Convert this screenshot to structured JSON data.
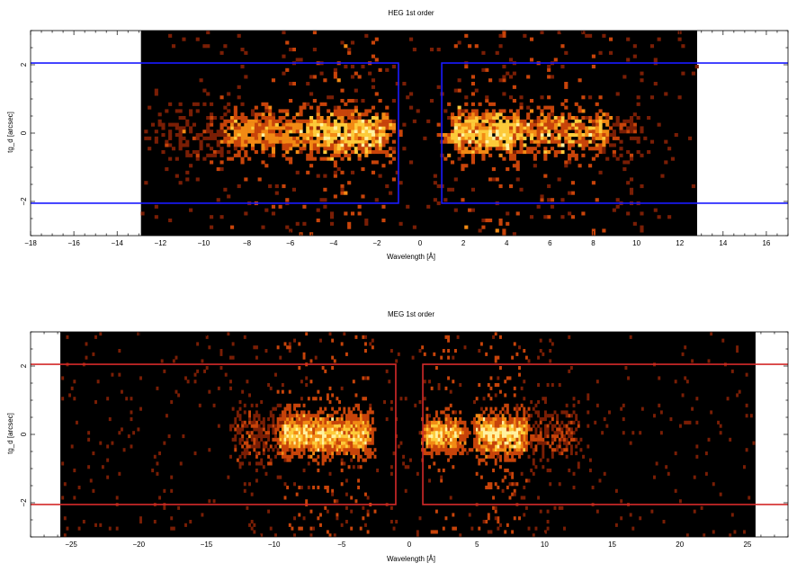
{
  "chart_data": [
    {
      "type": "heatmap",
      "title": "HEG 1st order",
      "xlabel": "Wavelength [Å]",
      "ylabel": "tg_d [arcsec]",
      "xlim": [
        -18,
        17
      ],
      "ylim": [
        -3,
        3
      ],
      "xticks_major": [
        -18,
        -16,
        -14,
        -12,
        -10,
        -8,
        -6,
        -4,
        -2,
        0,
        2,
        4,
        6,
        8,
        10,
        12,
        14,
        16
      ],
      "xtick_labels": [
        "−18",
        "−16",
        "−14",
        "−12",
        "−10",
        "−8",
        "−6",
        "−4",
        "−2",
        "0",
        "2",
        "4",
        "6",
        "8",
        "10",
        "12",
        "14",
        "16"
      ],
      "yticks_major": [
        -2,
        0,
        2
      ],
      "ytick_labels": [
        "−2",
        "0",
        "2"
      ],
      "data_region_x": [
        -12.9,
        12.8
      ],
      "background_color": "#000000",
      "colormap": [
        "#000000",
        "#7a1e05",
        "#c8440a",
        "#f28a14",
        "#fdcb3a",
        "#fff2a0"
      ],
      "grid": false,
      "clusters": [
        {
          "x_center": -3.2,
          "x_halfwidth": 1.8,
          "y_sigma": 0.35,
          "count": 700,
          "peak": 1.0
        },
        {
          "x_center": -7.0,
          "x_halfwidth": 2.0,
          "y_sigma": 0.35,
          "count": 450,
          "peak": 0.8
        },
        {
          "x_center": -10.5,
          "x_halfwidth": 1.5,
          "y_sigma": 0.4,
          "count": 120,
          "peak": 0.4
        },
        {
          "x_center": 3.0,
          "x_halfwidth": 1.6,
          "y_sigma": 0.35,
          "count": 650,
          "peak": 1.0
        },
        {
          "x_center": 6.8,
          "x_halfwidth": 2.0,
          "y_sigma": 0.35,
          "count": 420,
          "peak": 0.85
        },
        {
          "x_center": 9.2,
          "x_halfwidth": 1.0,
          "y_sigma": 0.4,
          "count": 80,
          "peak": 0.4
        }
      ],
      "regions": [
        {
          "x0": -18,
          "x1": -1.0,
          "y0": -2.05,
          "y1": 2.05,
          "color": "#1a1aff",
          "open_left": true
        },
        {
          "x0": 1.0,
          "x1": 17,
          "y0": -2.05,
          "y1": 2.05,
          "color": "#1a1aff",
          "open_right": true
        }
      ]
    },
    {
      "type": "heatmap",
      "title": "MEG 1st order",
      "xlabel": "Wavelength [Å]",
      "ylabel": "tg_d [arcsec]",
      "xlim": [
        -28,
        28
      ],
      "ylim": [
        -3,
        3
      ],
      "xticks_major": [
        -25,
        -20,
        -15,
        -10,
        -5,
        0,
        5,
        10,
        15,
        20,
        25
      ],
      "xtick_labels": [
        "−25",
        "−20",
        "−15",
        "−10",
        "−5",
        "0",
        "5",
        "10",
        "15",
        "20",
        "25"
      ],
      "yticks_major": [
        -2,
        0,
        2
      ],
      "ytick_labels": [
        "−2",
        "0",
        "2"
      ],
      "data_region_x": [
        -25.8,
        25.6
      ],
      "background_color": "#000000",
      "colormap": [
        "#000000",
        "#7a1e05",
        "#c8440a",
        "#f28a14",
        "#fdcb3a",
        "#fff2a0"
      ],
      "grid": false,
      "clusters": [
        {
          "x_center": -7.5,
          "x_halfwidth": 2.0,
          "y_sigma": 0.3,
          "count": 1100,
          "peak": 1.0
        },
        {
          "x_center": -4.2,
          "x_halfwidth": 1.3,
          "y_sigma": 0.3,
          "count": 700,
          "peak": 0.95
        },
        {
          "x_center": -11.0,
          "x_halfwidth": 2.0,
          "y_sigma": 0.4,
          "count": 250,
          "peak": 0.5
        },
        {
          "x_center": 2.5,
          "x_halfwidth": 1.3,
          "y_sigma": 0.25,
          "count": 650,
          "peak": 0.9
        },
        {
          "x_center": 6.8,
          "x_halfwidth": 1.8,
          "y_sigma": 0.3,
          "count": 1100,
          "peak": 1.0
        },
        {
          "x_center": 10.5,
          "x_halfwidth": 2.0,
          "y_sigma": 0.4,
          "count": 250,
          "peak": 0.5
        }
      ],
      "regions": [
        {
          "x0": -28,
          "x1": -1.0,
          "y0": -2.05,
          "y1": 2.05,
          "color": "#d42a2a",
          "open_left": true
        },
        {
          "x0": 1.0,
          "x1": 28,
          "y0": -2.05,
          "y1": 2.05,
          "color": "#d42a2a",
          "open_right": true
        }
      ]
    }
  ]
}
